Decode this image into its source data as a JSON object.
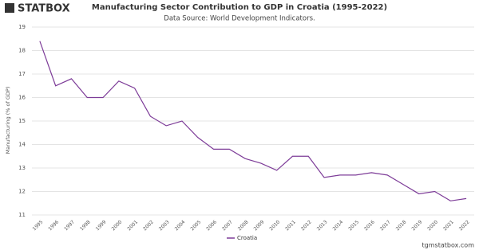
{
  "logo": "STATBOX",
  "footer": "tgmstatbox.com",
  "chart_data": {
    "type": "line",
    "title": "Manufacturing Sector Contribution to GDP in Croatia (1995-2022)",
    "subtitle": "Data Source: World Development Indicators.",
    "y_label": "Manufacturing (% of GDP)",
    "categories": [
      "1995",
      "1996",
      "1997",
      "1998",
      "1999",
      "2000",
      "2001",
      "2002",
      "2003",
      "2004",
      "2005",
      "2006",
      "2007",
      "2008",
      "2009",
      "2010",
      "2011",
      "2012",
      "2013",
      "2014",
      "2015",
      "2016",
      "2017",
      "2018",
      "2019",
      "2020",
      "2021",
      "2022"
    ],
    "series": [
      {
        "name": "Croatia",
        "color": "#7d3c98",
        "values": [
          18.4,
          16.5,
          16.8,
          16.0,
          16.0,
          16.7,
          16.4,
          15.2,
          14.8,
          15.0,
          14.3,
          13.8,
          13.8,
          13.4,
          13.2,
          12.9,
          13.5,
          13.5,
          12.6,
          12.7,
          12.7,
          12.8,
          12.7,
          12.3,
          11.9,
          12.0,
          11.6,
          11.7
        ]
      }
    ],
    "ylim": [
      11,
      19
    ],
    "yticks": [
      11,
      12,
      13,
      14,
      15,
      16,
      17,
      18,
      19
    ],
    "grid": true
  }
}
